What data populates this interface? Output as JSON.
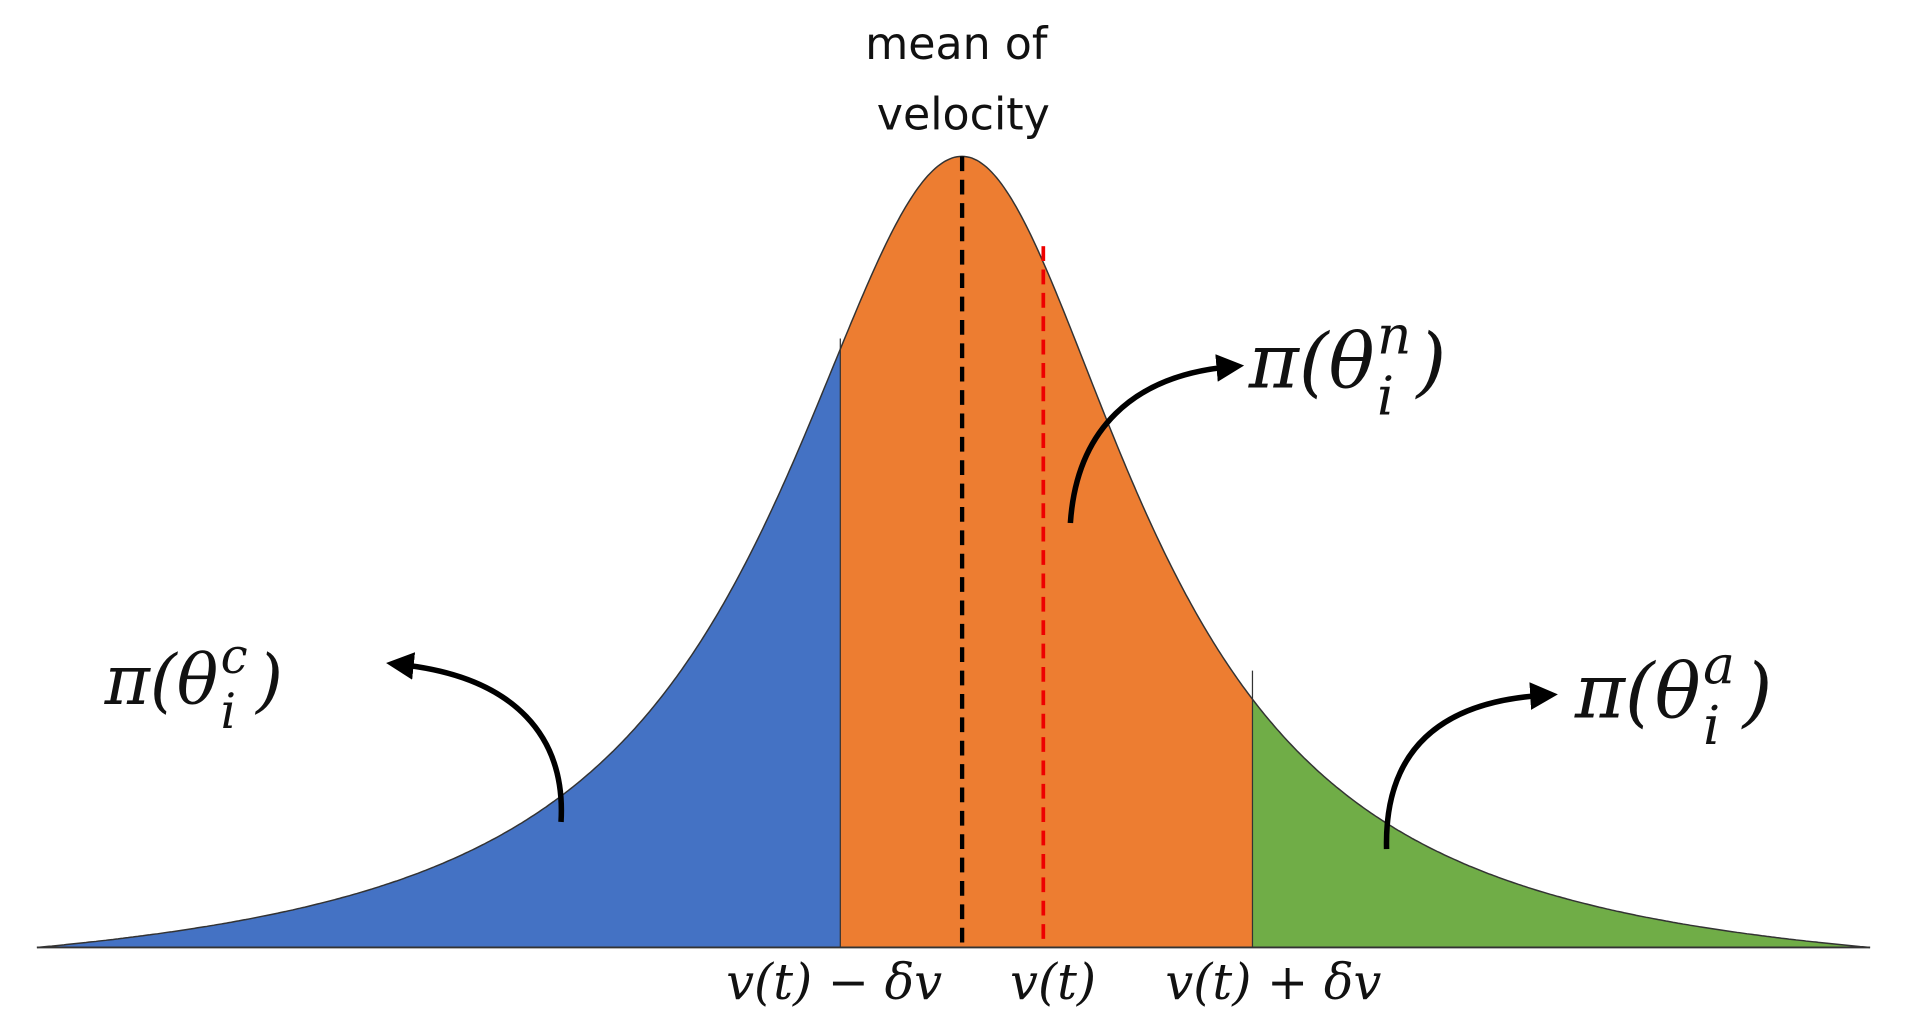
{
  "mean_label": {
    "lines": [
      "mean of",
      "velocity"
    ]
  },
  "regions": [
    {
      "prefix": "π(θ",
      "sup": "c",
      "sub": "i",
      "suffix": ")"
    },
    {
      "prefix": "π(θ",
      "sup": "n",
      "sub": "i",
      "suffix": ")"
    },
    {
      "prefix": "π(θ",
      "sup": "a",
      "sub": "i",
      "suffix": ")"
    }
  ],
  "x_labels": [
    "v(t) − δv",
    "v(t)",
    "v(t) + δv"
  ]
}
